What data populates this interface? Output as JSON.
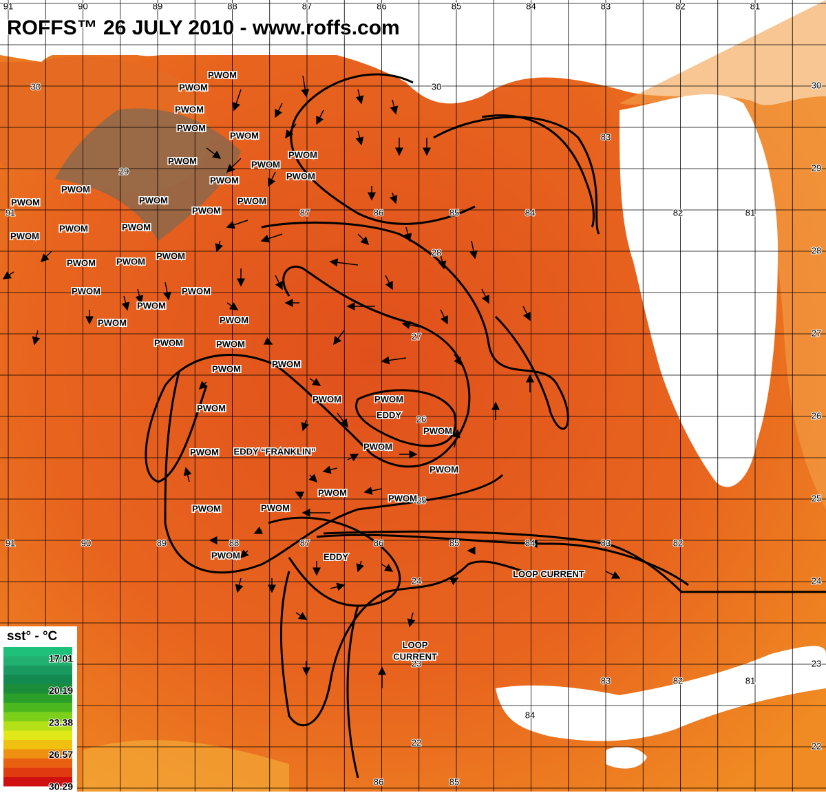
{
  "map": {
    "title": "ROFFS™ 26 JULY 2010 - www.roffs.com",
    "longitudes": [
      91,
      90,
      89,
      88,
      87,
      86,
      85,
      84,
      83,
      82,
      81
    ],
    "latitudes": [
      30,
      29,
      28,
      27,
      26,
      25,
      24,
      23,
      22
    ],
    "inner_labels": [
      "30",
      "29",
      "30",
      "83",
      "91",
      "87",
      "86",
      "85",
      "84",
      "82",
      "81",
      "28",
      "27",
      "26",
      "25",
      "91",
      "90",
      "89",
      "88",
      "87",
      "86",
      "85",
      "84",
      "83",
      "82",
      "24",
      "23",
      "83",
      "82",
      "81",
      "84",
      "22",
      "86",
      "85"
    ],
    "annotations": [
      "PWOM",
      "PWOM",
      "PWOM",
      "PWOM",
      "PWOM",
      "PWOM",
      "PWOM",
      "PWOM",
      "PWOM",
      "PWOM",
      "PWOM",
      "PWOM",
      "PWOM",
      "PWOM",
      "PWOM",
      "PWOM",
      "PWOM",
      "PWOM",
      "PWOM",
      "PWOM",
      "PWOM",
      "PWOM",
      "PWOM",
      "PWOM",
      "PWOM",
      "PWOM",
      "PWOM",
      "PWOM",
      "PWOM",
      "PWOM",
      "PWOM",
      "PWOM",
      "PWOM",
      "PWOM",
      "PWOM",
      "PWOM",
      "PWOM",
      "PWOM",
      "PWOM",
      "PWOM",
      "PWOM",
      "PWOM",
      "EDDY",
      "EDDY “FRANKLIN”",
      "EDDY",
      "LOOP CURRENT",
      "LOOP",
      "CURRENT"
    ],
    "legend": {
      "title": "sst° - °C",
      "values": [
        17.01,
        20.19,
        23.38,
        26.57,
        30.29
      ]
    }
  }
}
